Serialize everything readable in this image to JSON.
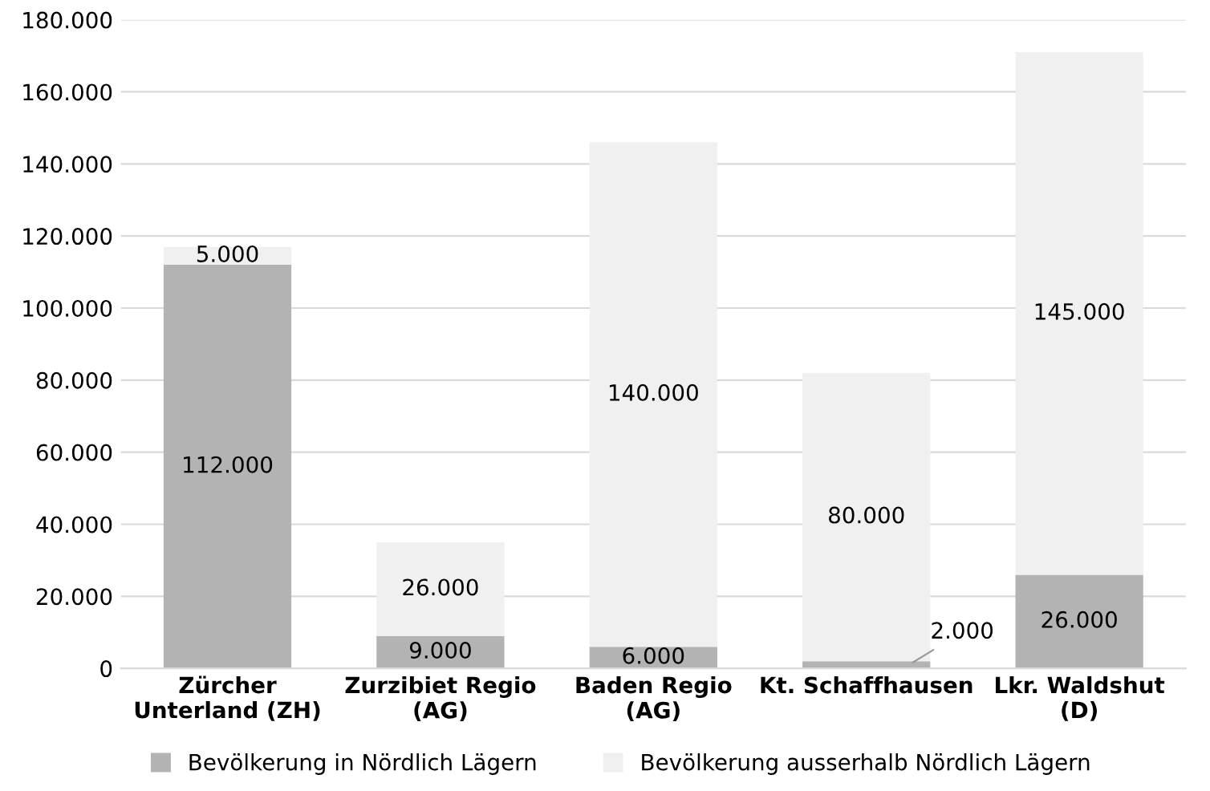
{
  "chart_data": {
    "type": "bar",
    "stacked": true,
    "categories": [
      "Zürcher\nUnterland (ZH)",
      "Zurzibiet Regio\n(AG)",
      "Baden Regio\n(AG)",
      "Kt. Schaffhausen",
      "Lkr. Waldshut\n(D)"
    ],
    "series": [
      {
        "name": "Bevölkerung in Nördlich Lägern",
        "color": "#b3b3b3",
        "values": [
          112000,
          9000,
          6000,
          2000,
          26000
        ],
        "value_labels": [
          "112.000",
          "9.000",
          "6.000",
          "2.000",
          "26.000"
        ]
      },
      {
        "name": "Bevölkerung ausserhalb Nördlich Lägern",
        "color": "#f0f0f0",
        "values": [
          5000,
          26000,
          140000,
          80000,
          145000
        ],
        "value_labels": [
          "5.000",
          "26.000",
          "140.000",
          "80.000",
          "145.000"
        ]
      }
    ],
    "ylim": [
      0,
      180000
    ],
    "yticks": [
      {
        "value": 0,
        "label": "0"
      },
      {
        "value": 20000,
        "label": "20.000"
      },
      {
        "value": 40000,
        "label": "40.000"
      },
      {
        "value": 60000,
        "label": "60.000"
      },
      {
        "value": 80000,
        "label": "80.000"
      },
      {
        "value": 100000,
        "label": "100.000"
      },
      {
        "value": 120000,
        "label": "120.000"
      },
      {
        "value": 140000,
        "label": "140.000"
      },
      {
        "value": 160000,
        "label": "160.000"
      },
      {
        "value": 180000,
        "label": "180.000"
      }
    ],
    "grid": "y",
    "legend": "bottom"
  }
}
